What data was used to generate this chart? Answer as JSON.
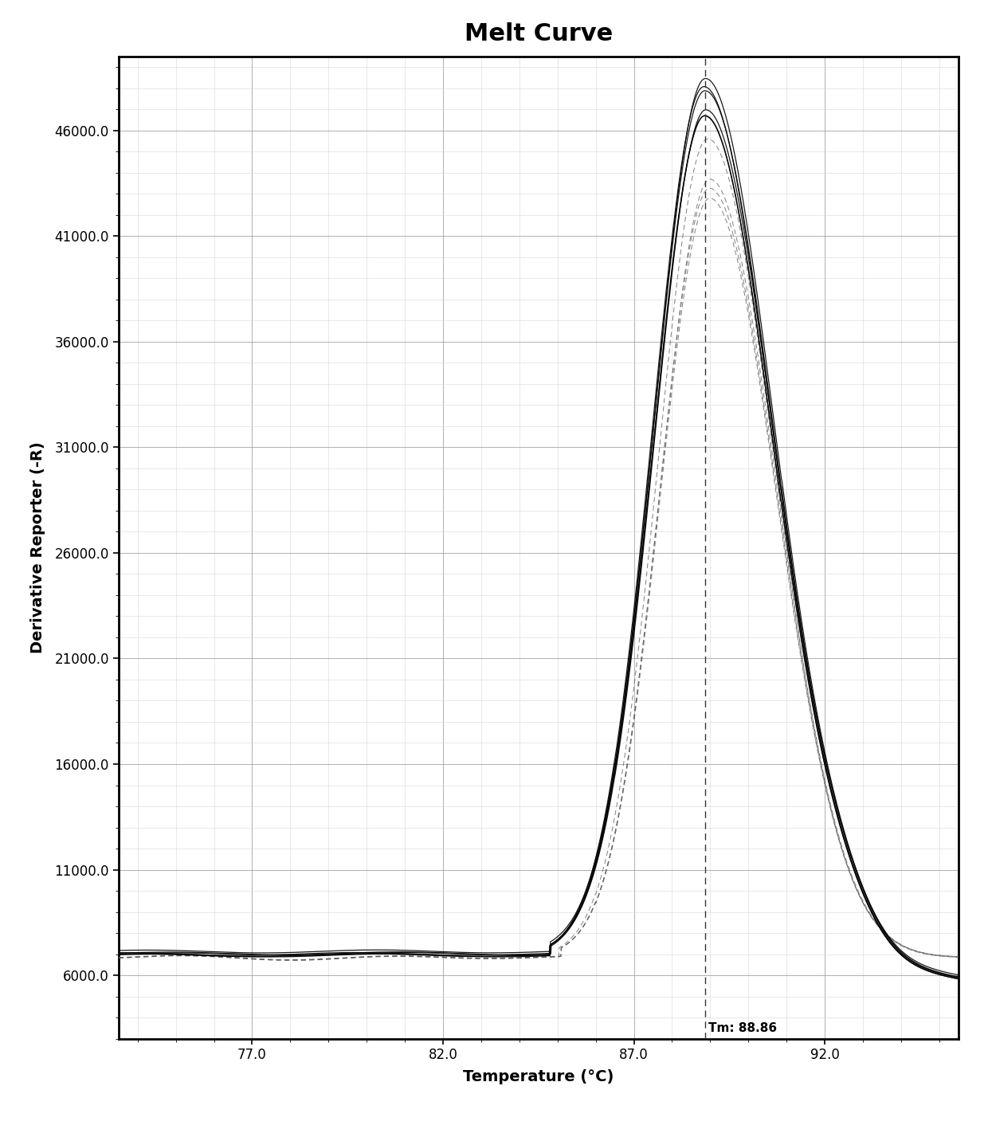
{
  "title": "Melt Curve",
  "xlabel": "Temperature (°C)",
  "ylabel": "Derivative Reporter (-R)",
  "xlim": [
    73.5,
    95.5
  ],
  "ylim": [
    3000,
    49500
  ],
  "yticks": [
    6000.0,
    11000.0,
    16000.0,
    21000.0,
    26000.0,
    31000.0,
    36000.0,
    41000.0,
    46000.0
  ],
  "xticks": [
    77.0,
    82.0,
    87.0,
    92.0
  ],
  "tm": 88.86,
  "tm_label": "Tm: 88.86",
  "peak_x": 88.86,
  "peak_y": 48500,
  "baseline_y": 7000,
  "background_color": "#ffffff",
  "line_color": "#000000",
  "grid_major_color": "#999999",
  "grid_minor_color": "#cccccc",
  "title_fontsize": 22,
  "axis_label_fontsize": 14,
  "tick_fontsize": 12
}
